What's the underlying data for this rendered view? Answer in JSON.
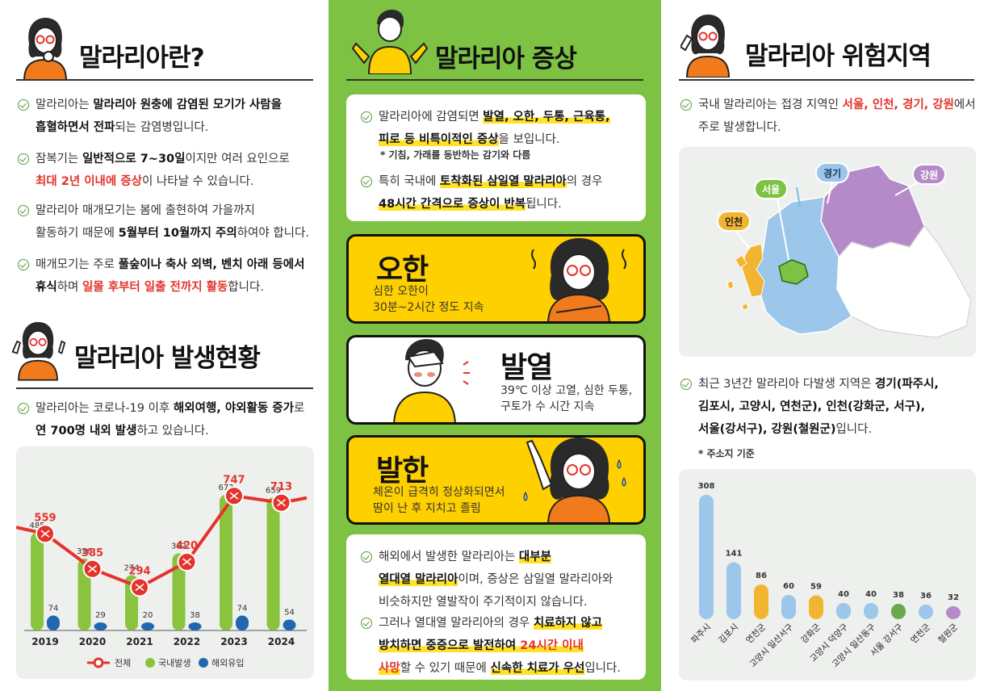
{
  "left": {
    "heading1": "말라리아란?",
    "bullets": [
      {
        "parts": [
          [
            "말라리아는 ",
            ""
          ],
          [
            "말라리아 원충에 감염된 모기가 사람을",
            "b"
          ]
        ],
        "line2": [
          [
            "흡혈하면서 전파",
            "b"
          ],
          [
            "되는 감염병입니다.",
            ""
          ]
        ]
      },
      {
        "parts": [
          [
            "잠복기는 ",
            ""
          ],
          [
            "일반적으로 7~30일",
            "b"
          ],
          [
            "이지만 여러 요인으로",
            ""
          ]
        ],
        "line2": [
          [
            "최대 2년 이내에 증상",
            "red"
          ],
          [
            "이 나타날 수 있습니다.",
            ""
          ]
        ]
      },
      {
        "parts": [
          [
            "말라리아 매개모기는 봄에 출현하여 가을까지",
            ""
          ]
        ],
        "line2": [
          [
            "활동하기 때문에 ",
            ""
          ],
          [
            "5월부터 10월까지 주의",
            "b"
          ],
          [
            "하여야 합니다.",
            ""
          ]
        ]
      },
      {
        "parts": [
          [
            "매개모기는 주로 ",
            ""
          ],
          [
            "풀숲이나 축사 외벽, 벤치 아래 등에서",
            "b"
          ]
        ],
        "line2": [
          [
            "휴식",
            "b"
          ],
          [
            "하며 ",
            ""
          ],
          [
            "일몰 후부터 일출 전까지 활동",
            "red"
          ],
          [
            "합니다.",
            ""
          ]
        ]
      }
    ],
    "heading2": "말라리아 발생현황",
    "bullet5": {
      "parts": [
        [
          "말라리아는 코로나-19 이후 ",
          ""
        ],
        [
          "해외여행, 야외활동 증가",
          "b"
        ],
        [
          "로",
          ""
        ]
      ],
      "line2": [
        [
          "연 700명 내외 발생",
          "b"
        ],
        [
          "하고 있습니다.",
          ""
        ]
      ]
    },
    "legend": {
      "total": "전체",
      "domestic": "국내발생",
      "overseas": "해외유입"
    }
  },
  "middle": {
    "heading": "말라리아 증상",
    "box1": {
      "b1": {
        "parts": [
          [
            "말라리아에 감염되면 ",
            ""
          ],
          [
            "발열, 오한, 두통, 근육통,",
            "hl"
          ]
        ],
        "line2": [
          [
            "피로 등 비특이적인 증상",
            "hl"
          ],
          [
            "을 보입니다.",
            ""
          ]
        ]
      },
      "note": "* 기침, 가래를 동반하는 감기와 다름",
      "b2": {
        "parts": [
          [
            "특히 국내에 ",
            ""
          ],
          [
            "토착화된 삼일열 말라리아",
            "hl"
          ],
          [
            "의 경우",
            ""
          ]
        ],
        "line2": [
          [
            "48시간 간격으로 증상이 반복",
            "hl"
          ],
          [
            "됩니다.",
            ""
          ]
        ]
      }
    },
    "cards": [
      {
        "title": "오한",
        "desc1": "심한 오한이",
        "desc2": "30분~2시간 정도 지속"
      },
      {
        "title": "발열",
        "desc1": "39℃ 이상 고열, 심한 두통,",
        "desc2": "구토가 수 시간 지속"
      },
      {
        "title": "발한",
        "desc1": "체온이 급격히 정상화되면서",
        "desc2": "땀이 난 후 지치고 졸림"
      }
    ],
    "box2": {
      "b1": {
        "parts": [
          [
            "해외에서 발생한 말라리아는 ",
            ""
          ],
          [
            "대부분",
            "hl"
          ]
        ],
        "line2": [
          [
            "열대열 말라리아",
            "hl"
          ],
          [
            "이며, 증상은 삼일열 말라리아와",
            ""
          ]
        ],
        "line3": [
          [
            "비슷하지만 열발작이 주기적이지 않습니다.",
            ""
          ]
        ]
      },
      "b2": {
        "parts": [
          [
            "그러나 열대열 말라리아의 경우 ",
            ""
          ],
          [
            "치료하지 않고",
            "hl"
          ]
        ],
        "line2": [
          [
            "방치하면 중증으로 발전하여 ",
            "hl"
          ],
          [
            "24시간 이내",
            "redhl"
          ]
        ],
        "line3": [
          [
            "사망",
            "redhl"
          ],
          [
            "할 수 있기 때문에 ",
            ""
          ],
          [
            "신속한 치료가 우선",
            "hl"
          ],
          [
            "입니다.",
            ""
          ]
        ]
      }
    }
  },
  "right": {
    "heading": "말라리아 위험지역",
    "b1": {
      "parts": [
        [
          "국내 말라리아는 접경 지역인 ",
          ""
        ],
        [
          "서울, 인천, 경기, 강원",
          "red"
        ],
        [
          "에서",
          ""
        ]
      ],
      "line2": [
        [
          "주로 발생합니다.",
          ""
        ]
      ]
    },
    "map_labels": {
      "gyeonggi": "경기",
      "gangwon": "강원",
      "seoul": "서울",
      "incheon": "인천"
    },
    "b2": {
      "parts": [
        [
          "최근 3년간 말라리아 다발생 지역은 ",
          ""
        ],
        [
          "경기(파주시,",
          "b"
        ]
      ],
      "line2": [
        [
          "김포시, 고양시, 연천군), 인천(강화군, 서구),",
          "b"
        ]
      ],
      "line3": [
        [
          "서울(강서구), 강원(철원군)",
          "b"
        ],
        [
          "입니다.",
          ""
        ]
      ]
    },
    "note": "* 주소지 기준"
  },
  "colors": {
    "green": "#7dc242",
    "yellow": "#ffd000",
    "red": "#e4332b",
    "blue": "#1f68b0",
    "barGreen": "#8ac43f"
  },
  "chart_data": [
    {
      "type": "bar",
      "categories": [
        "2019",
        "2020",
        "2021",
        "2022",
        "2023",
        "2024"
      ],
      "series": [
        {
          "name": "전체",
          "type": "line",
          "values": [
            559,
            385,
            294,
            420,
            747,
            713
          ]
        },
        {
          "name": "국내발생",
          "values": [
            485,
            356,
            274,
            382,
            673,
            659
          ]
        },
        {
          "name": "해외유입",
          "values": [
            74,
            29,
            20,
            38,
            74,
            54
          ]
        }
      ],
      "legend": "bottom"
    },
    {
      "type": "bar",
      "categories": [
        "파주시",
        "김포시",
        "연천군",
        "고양시 일산서구",
        "강화군",
        "고양시 덕양구",
        "고양시 일산동구",
        "서울 강서구",
        "연천군",
        "철원군"
      ],
      "values": [
        308,
        141,
        86,
        60,
        59,
        40,
        40,
        38,
        36,
        32
      ],
      "colors": [
        "#9cc6ea",
        "#9cc6ea",
        "#f2b531",
        "#9cc6ea",
        "#f2b531",
        "#9cc6ea",
        "#9cc6ea",
        "#6aa84f",
        "#9cc6ea",
        "#b58ac9"
      ]
    }
  ]
}
